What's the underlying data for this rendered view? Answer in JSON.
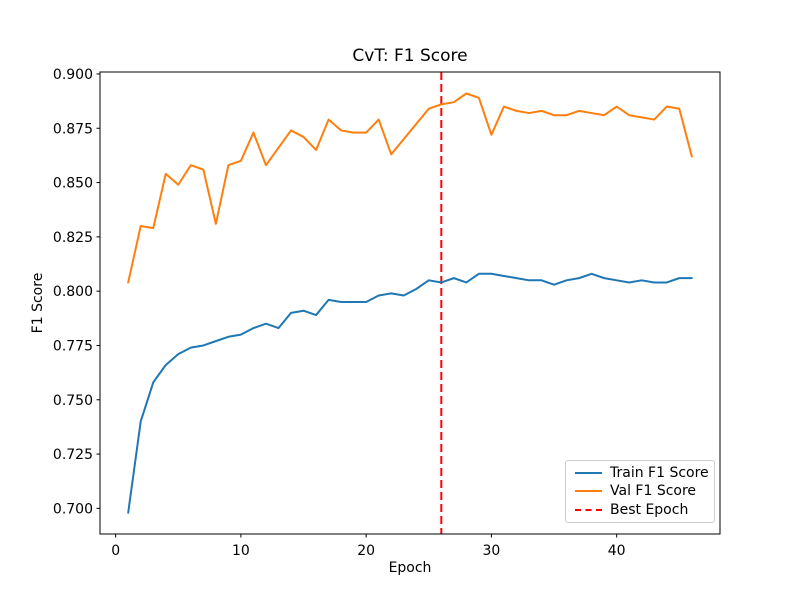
{
  "chart_data": {
    "type": "line",
    "title": "CvT: F1 Score",
    "xlabel": "Epoch",
    "ylabel": "F1 Score",
    "grid": false,
    "legend_position": "lower right",
    "xlim": [
      -1.25,
      48.25
    ],
    "ylim": [
      0.6882,
      0.9009
    ],
    "x_start_epoch": 1,
    "xticks": {
      "values": [
        0,
        10,
        20,
        30,
        40
      ],
      "labels": [
        "0",
        "10",
        "20",
        "30",
        "40"
      ]
    },
    "yticks": {
      "values": [
        0.7,
        0.725,
        0.75,
        0.775,
        0.8,
        0.825,
        0.85,
        0.875,
        0.9
      ],
      "labels": [
        "0.700",
        "0.725",
        "0.750",
        "0.775",
        "0.800",
        "0.825",
        "0.850",
        "0.875",
        "0.900"
      ]
    },
    "series": [
      {
        "name": "Train F1 Score",
        "color": "#1f77b4",
        "style": "solid",
        "values": [
          0.698,
          0.74,
          0.758,
          0.766,
          0.771,
          0.774,
          0.775,
          0.777,
          0.779,
          0.78,
          0.783,
          0.785,
          0.783,
          0.79,
          0.791,
          0.789,
          0.796,
          0.795,
          0.795,
          0.795,
          0.798,
          0.799,
          0.798,
          0.801,
          0.805,
          0.804,
          0.806,
          0.804,
          0.808,
          0.808,
          0.807,
          0.806,
          0.805,
          0.805,
          0.803,
          0.805,
          0.806,
          0.808,
          0.806,
          0.805,
          0.804,
          0.805,
          0.804,
          0.804,
          0.806,
          0.806
        ]
      },
      {
        "name": "Val F1 Score",
        "color": "#ff7f0e",
        "style": "solid",
        "values": [
          0.804,
          0.83,
          0.829,
          0.854,
          0.849,
          0.858,
          0.856,
          0.831,
          0.858,
          0.86,
          0.873,
          0.858,
          0.866,
          0.874,
          0.871,
          0.865,
          0.879,
          0.874,
          0.873,
          0.873,
          0.879,
          0.863,
          0.87,
          0.877,
          0.884,
          0.886,
          0.887,
          0.891,
          0.889,
          0.872,
          0.885,
          0.883,
          0.882,
          0.883,
          0.881,
          0.881,
          0.883,
          0.882,
          0.881,
          0.885,
          0.881,
          0.88,
          0.879,
          0.885,
          0.884,
          0.862
        ]
      }
    ],
    "best_epoch": {
      "label": "Best Epoch",
      "epoch": 26,
      "color": "#ff0000",
      "style": "dashed"
    }
  }
}
